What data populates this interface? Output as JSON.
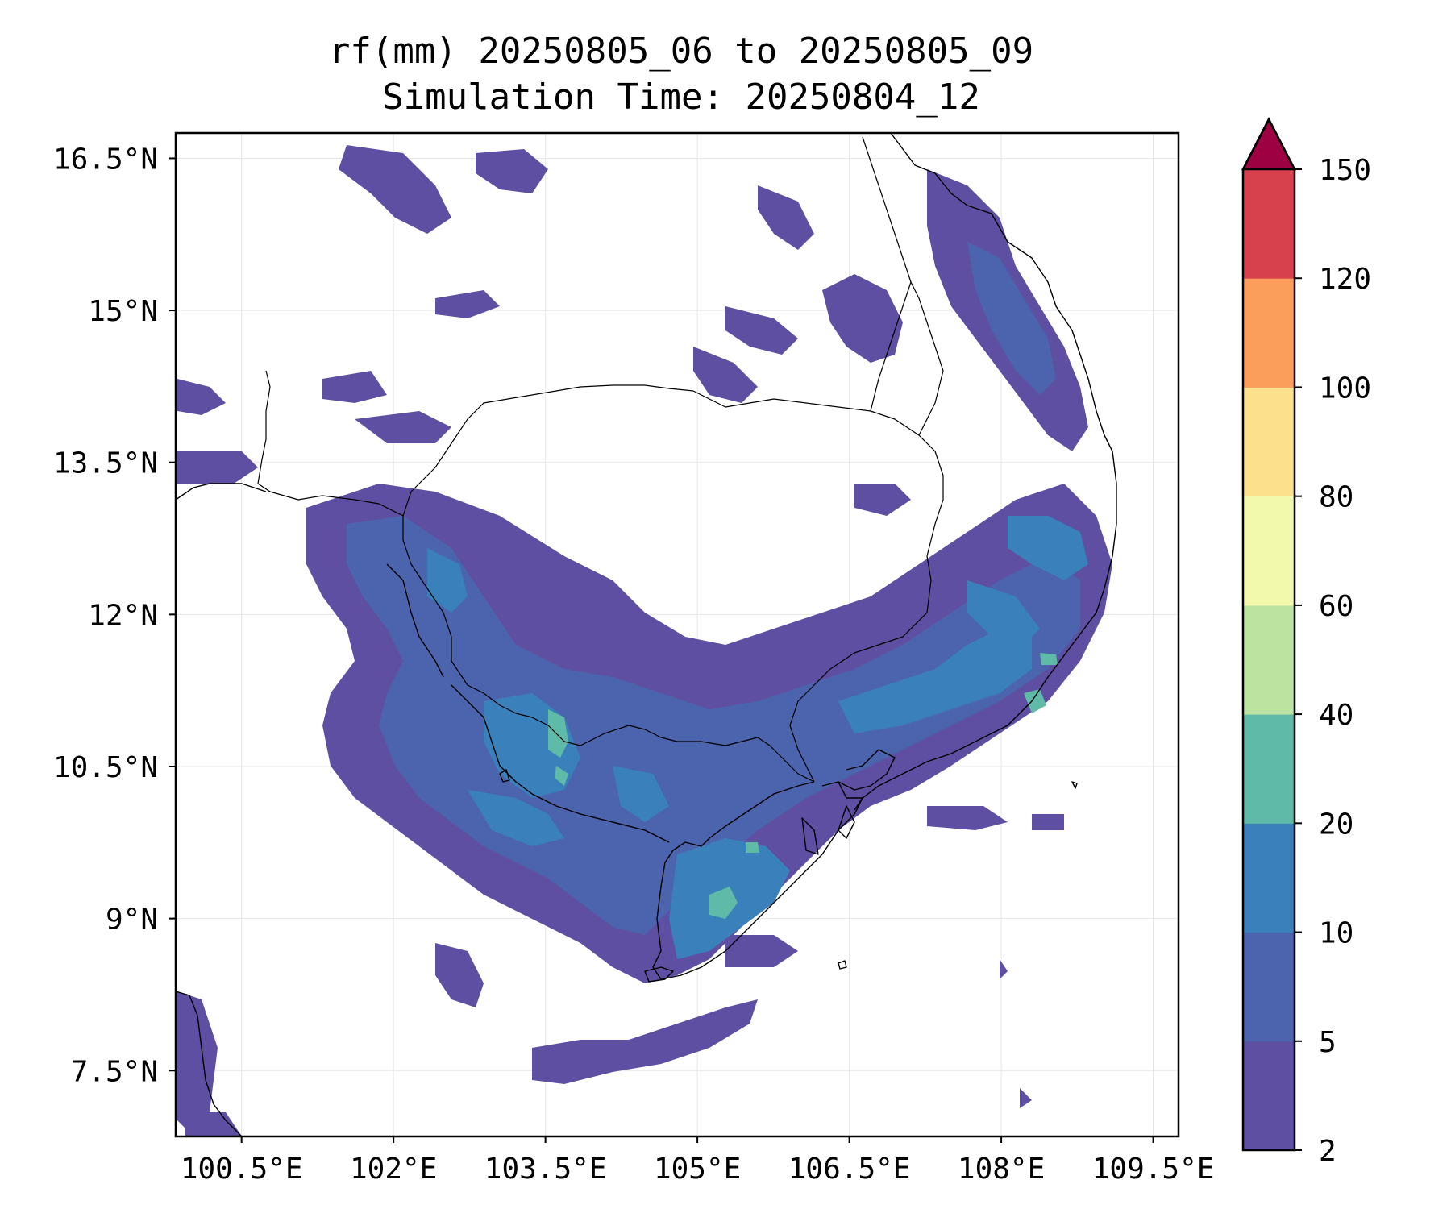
{
  "title": {
    "line1": "rf(mm) 20250805_06 to 20250805_09",
    "line2": "Simulation Time: 20250804_12"
  },
  "map": {
    "lon_range": [
      99.85,
      109.75
    ],
    "lat_range": [
      6.85,
      16.75
    ],
    "x_ticks": [
      {
        "value": 100.5,
        "label": "100.5°E"
      },
      {
        "value": 102.0,
        "label": "102°E"
      },
      {
        "value": 103.5,
        "label": "103.5°E"
      },
      {
        "value": 105.0,
        "label": "105°E"
      },
      {
        "value": 106.5,
        "label": "106.5°E"
      },
      {
        "value": 108.0,
        "label": "108°E"
      },
      {
        "value": 109.5,
        "label": "109.5°E"
      }
    ],
    "y_ticks": [
      {
        "value": 7.5,
        "label": "7.5°N"
      },
      {
        "value": 9.0,
        "label": "9°N"
      },
      {
        "value": 10.5,
        "label": "10.5°N"
      },
      {
        "value": 12.0,
        "label": "12°N"
      },
      {
        "value": 13.5,
        "label": "13.5°N"
      },
      {
        "value": 15.0,
        "label": "15°N"
      },
      {
        "value": 16.5,
        "label": "16.5°N"
      }
    ],
    "gridlines": true
  },
  "colorbar": {
    "levels": [
      2,
      5,
      10,
      20,
      40,
      60,
      80,
      100,
      120,
      150
    ],
    "labels": [
      "2",
      "5",
      "10",
      "20",
      "40",
      "60",
      "80",
      "100",
      "120",
      "150"
    ],
    "colors": [
      "#5e4fa2",
      "#4c63ad",
      "#3a81bb",
      "#5fbaa7",
      "#bce3a0",
      "#f2f9ad",
      "#fde08b",
      "#fb9e5b",
      "#d6414d"
    ],
    "extend_color": "#9e0142",
    "extend": "max"
  },
  "colors": {
    "rain_2_5": "#5e4fa2",
    "rain_5_10": "#4c63ad",
    "rain_10_20": "#3a81bb",
    "rain_20_40": "#5fbaa7"
  }
}
